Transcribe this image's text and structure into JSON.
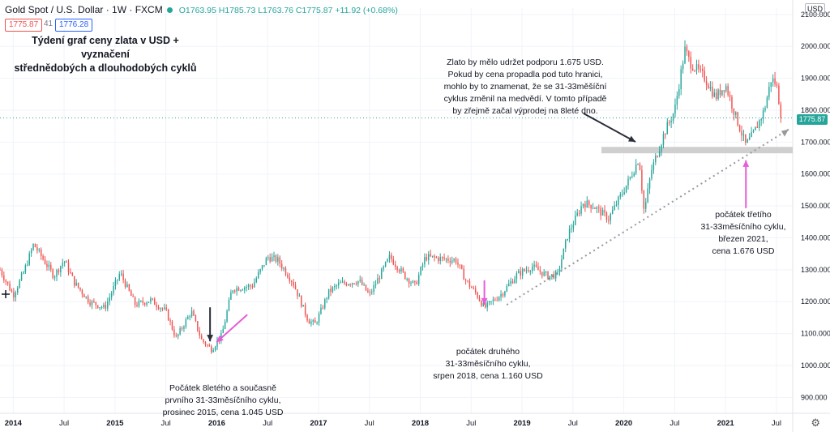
{
  "header": {
    "symbol": "Gold Spot / U.S. Dollar · 1W · FXCM",
    "ohlc": "O1763.95 H1785.73 L1763.76 C1775.87 +11.92 (+0.68%)",
    "bid": "1775.87",
    "spread": "41",
    "ask": "1776.28",
    "currency": "USD"
  },
  "title_lines": [
    "Týdení graf ceny zlata v USD + vyznačení",
    "střednědobých a dlouhodobých cyklů"
  ],
  "annotations": {
    "support": [
      "Zlato by mělo udržet podporu 1.675 USD.",
      "Pokud by cena propadla pod tuto hranici,",
      "mohlo by to znamenat, že se 31-33měšíční",
      "cyklus změnil na medvědí. V tomto případě",
      "by zřejmě začal výprodej na 8leté dno."
    ],
    "cycle1": [
      "Počátek 8letého a současně",
      "prvního 31-33měsíčního cyklu,",
      "prosinec 2015, cena 1.045 USD"
    ],
    "cycle2": [
      "počátek druhého",
      "31-33měsíčního cyklu,",
      "srpen 2018, cena 1.160 USD"
    ],
    "cycle3": [
      "počátek třetího",
      "31-33měsíčního cyklu,",
      "březen 2021,",
      "cena 1.676 USD"
    ]
  },
  "price_label": "1775.87",
  "colors": {
    "up": "#26a69a",
    "down": "#ef5350",
    "pink": "#e65cd9",
    "dark": "#2a2e39",
    "support": "#cfcfcf"
  },
  "chart_data": {
    "type": "candlestick",
    "title": "Týdení graf ceny zlata v USD + vyznačení střednědobých a dlouhodobých cyklů",
    "xlabel": "",
    "ylabel": "",
    "ylim": [
      850,
      2120
    ],
    "yticks": [
      900,
      1000,
      1100,
      1200,
      1300,
      1400,
      1500,
      1600,
      1700,
      1800,
      1900,
      2000,
      2100
    ],
    "ytick_labels": [
      "900.000",
      "1000.000",
      "1100.000",
      "1200.000",
      "1300.000",
      "1400.000",
      "1500.000",
      "1600.000",
      "1700.000",
      "1800.000",
      "1900.000",
      "2000.000",
      "2100.000"
    ],
    "xticks": [
      2014,
      2014.5,
      2015,
      2015.5,
      2016,
      2016.5,
      2017,
      2017.5,
      2018,
      2018.5,
      2019,
      2019.5,
      2020,
      2020.5,
      2021,
      2021.5
    ],
    "xtick_labels": [
      "2014",
      "Jul",
      "2015",
      "Jul",
      "2016",
      "Jul",
      "2017",
      "Jul",
      "2018",
      "Jul",
      "2019",
      "Jul",
      "2020",
      "Jul",
      "2021",
      "Jul"
    ],
    "xlim": [
      2013.87,
      2021.66
    ],
    "price_path": [
      [
        2013.87,
        1300
      ],
      [
        2014.0,
        1220
      ],
      [
        2014.1,
        1290
      ],
      [
        2014.2,
        1380
      ],
      [
        2014.4,
        1280
      ],
      [
        2014.5,
        1330
      ],
      [
        2014.6,
        1260
      ],
      [
        2014.75,
        1200
      ],
      [
        2014.9,
        1180
      ],
      [
        2015.05,
        1290
      ],
      [
        2015.2,
        1190
      ],
      [
        2015.35,
        1205
      ],
      [
        2015.5,
        1170
      ],
      [
        2015.6,
        1085
      ],
      [
        2015.75,
        1170
      ],
      [
        2015.85,
        1080
      ],
      [
        2015.95,
        1050
      ],
      [
        2016.05,
        1095
      ],
      [
        2016.15,
        1240
      ],
      [
        2016.35,
        1250
      ],
      [
        2016.5,
        1340
      ],
      [
        2016.6,
        1330
      ],
      [
        2016.75,
        1260
      ],
      [
        2016.9,
        1140
      ],
      [
        2016.97,
        1130
      ],
      [
        2017.1,
        1230
      ],
      [
        2017.2,
        1255
      ],
      [
        2017.4,
        1265
      ],
      [
        2017.5,
        1220
      ],
      [
        2017.6,
        1280
      ],
      [
        2017.7,
        1340
      ],
      [
        2017.85,
        1280
      ],
      [
        2017.95,
        1250
      ],
      [
        2018.05,
        1340
      ],
      [
        2018.2,
        1335
      ],
      [
        2018.35,
        1330
      ],
      [
        2018.45,
        1265
      ],
      [
        2018.55,
        1225
      ],
      [
        2018.63,
        1180
      ],
      [
        2018.8,
        1225
      ],
      [
        2018.95,
        1285
      ],
      [
        2019.1,
        1310
      ],
      [
        2019.25,
        1280
      ],
      [
        2019.35,
        1285
      ],
      [
        2019.45,
        1410
      ],
      [
        2019.6,
        1510
      ],
      [
        2019.7,
        1500
      ],
      [
        2019.85,
        1460
      ],
      [
        2019.95,
        1520
      ],
      [
        2020.05,
        1580
      ],
      [
        2020.15,
        1650
      ],
      [
        2020.2,
        1480
      ],
      [
        2020.27,
        1610
      ],
      [
        2020.4,
        1730
      ],
      [
        2020.5,
        1800
      ],
      [
        2020.6,
        1990
      ],
      [
        2020.65,
        1950
      ],
      [
        2020.8,
        1900
      ],
      [
        2020.9,
        1840
      ],
      [
        2021.0,
        1880
      ],
      [
        2021.1,
        1780
      ],
      [
        2021.2,
        1690
      ],
      [
        2021.28,
        1730
      ],
      [
        2021.38,
        1800
      ],
      [
        2021.45,
        1900
      ],
      [
        2021.5,
        1880
      ],
      [
        2021.55,
        1775.87
      ]
    ],
    "last_price": 1775.87,
    "support_level": 1675,
    "trendline": [
      [
        2018.85,
        1190
      ],
      [
        2021.62,
        1740
      ]
    ],
    "cycle_lows": [
      {
        "date": "prosinec 2015",
        "t": 2015.95,
        "price": 1045
      },
      {
        "date": "srpen 2018",
        "t": 2018.63,
        "price": 1160
      },
      {
        "date": "březen 2021",
        "t": 2021.2,
        "price": 1676
      }
    ]
  }
}
